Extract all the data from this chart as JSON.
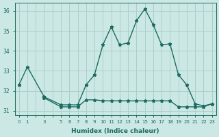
{
  "xlabel": "Humidex (Indice chaleur)",
  "background_color": "#cce8e4",
  "grid_color": "#aacfcb",
  "line_color": "#1a6b60",
  "xlim": [
    -0.5,
    23.5
  ],
  "ylim": [
    30.8,
    36.4
  ],
  "yticks": [
    31,
    32,
    33,
    34,
    35,
    36
  ],
  "x_labels": [
    "0",
    "1",
    "",
    "3",
    "",
    "5",
    "6",
    "7",
    "8",
    "9",
    "10",
    "11",
    "12",
    "13",
    "14",
    "15",
    "16",
    "17",
    "18",
    "19",
    "20",
    "21",
    "22",
    "23"
  ],
  "series1_x": [
    0,
    1,
    3,
    5,
    6,
    7,
    8,
    9,
    10,
    11,
    12,
    13,
    14,
    15,
    16,
    17,
    18,
    19,
    20,
    21,
    22,
    23
  ],
  "series1_y": [
    32.3,
    33.2,
    31.7,
    31.3,
    31.3,
    31.3,
    32.3,
    32.8,
    34.3,
    35.2,
    34.3,
    34.4,
    35.5,
    36.1,
    35.3,
    34.3,
    34.35,
    32.8,
    32.3,
    31.35,
    31.25,
    31.35
  ],
  "series2_x": [
    3,
    5,
    6,
    7,
    8,
    9,
    10,
    11,
    12,
    13,
    14,
    15,
    16,
    17,
    18,
    19,
    20,
    21,
    22,
    23
  ],
  "series2_y": [
    31.65,
    31.2,
    31.2,
    31.2,
    31.55,
    31.55,
    31.5,
    31.5,
    31.5,
    31.5,
    31.5,
    31.5,
    31.5,
    31.5,
    31.5,
    31.2,
    31.2,
    31.2,
    31.2,
    31.35
  ],
  "marker": "*",
  "markersize": 3.5,
  "linewidth": 1.0
}
